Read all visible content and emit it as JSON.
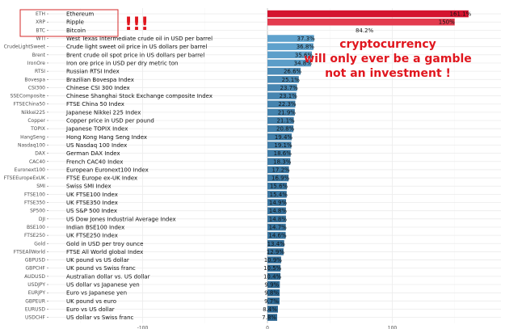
{
  "chart_data": {
    "type": "bar",
    "orientation": "horizontal",
    "xlim": [
      -100,
      160
    ],
    "x_ticks": [
      -100,
      0,
      100
    ],
    "grid": true,
    "colors": {
      "crypto": "#d4132f",
      "crypto_mid": "#e33b4e",
      "high": "#5fa2cd",
      "low": "#2c6691"
    },
    "rows": [
      {
        "code": "ETH",
        "name": "Ethereum",
        "value": 161.1,
        "label": "161.1%"
      },
      {
        "code": "XRP",
        "name": "Ripple",
        "value": 150.0,
        "label": "150%"
      },
      {
        "code": "BTC",
        "name": "Bitcoin",
        "value": 84.2,
        "label": "84.2%"
      },
      {
        "code": "WTI",
        "name": "West Texas Intermediate crude oil in USD per barrel",
        "value": 37.3,
        "label": "37.3%"
      },
      {
        "code": "CrudeLightSweet",
        "name": "Crude light sweet oil price in US dollars per barrel",
        "value": 36.8,
        "label": "36.8%"
      },
      {
        "code": "Brent",
        "name": "Brent crude oil spot price in US dollars per barrel",
        "value": 35.6,
        "label": "35.6%"
      },
      {
        "code": "IronOre",
        "name": "Iron ore price in USD per dry metric ton",
        "value": 34.8,
        "label": "34.8%"
      },
      {
        "code": "RTSI",
        "name": "Russian RTSI Index",
        "value": 26.6,
        "label": "26.6%"
      },
      {
        "code": "Bovespa",
        "name": "Brazilian Bovespa Index",
        "value": 25.1,
        "label": "25.1%"
      },
      {
        "code": "CSI300",
        "name": "Chinese CSI 300 Index",
        "value": 23.7,
        "label": "23.7%"
      },
      {
        "code": "SSEComposite",
        "name": "Chinese Shanghai Stock Exchange composite Index",
        "value": 23.1,
        "label": "23.1%"
      },
      {
        "code": "FTSEChina50",
        "name": "FTSE China 50 Index",
        "value": 22.3,
        "label": "22.3%"
      },
      {
        "code": "Nikkei225",
        "name": "Japanese Nikkei 225 Index",
        "value": 21.9,
        "label": "21.9%"
      },
      {
        "code": "Copper",
        "name": "Copper price in USD per pound",
        "value": 21.1,
        "label": "21.1%"
      },
      {
        "code": "TOPIX",
        "name": "Japanese TOPIX Index",
        "value": 20.8,
        "label": "20.8%"
      },
      {
        "code": "HangSeng",
        "name": "Hong Kong Hang Seng Index",
        "value": 19.4,
        "label": "19.4%"
      },
      {
        "code": "Nasdaq100",
        "name": "US Nasdaq 100 Index",
        "value": 19.1,
        "label": "19.1%"
      },
      {
        "code": "DAX",
        "name": "German DAX Index",
        "value": 18.6,
        "label": "18.6%"
      },
      {
        "code": "CAC40",
        "name": "French CAC40 Index",
        "value": 18.3,
        "label": "18.3%"
      },
      {
        "code": "Euronext100",
        "name": "European Euronext100 Index",
        "value": 17.2,
        "label": "17.2%"
      },
      {
        "code": "FTSEEuropeExUK",
        "name": "FTSE Europe ex-UK Index",
        "value": 16.9,
        "label": "16.9%"
      },
      {
        "code": "SMI",
        "name": "Swiss SMI Index",
        "value": 15.6,
        "label": "15.6%"
      },
      {
        "code": "FTSE100",
        "name": "UK FTSE100 Index",
        "value": 15.4,
        "label": "15.4%"
      },
      {
        "code": "FTSE350",
        "name": "UK FTSE350 Index",
        "value": 14.9,
        "label": "14.9%"
      },
      {
        "code": "SP500",
        "name": "US S&P 500 Index",
        "value": 14.8,
        "label": "14.8%"
      },
      {
        "code": "DJI",
        "name": "US Dow Jones Industrial Average Index",
        "value": 14.8,
        "label": "14.8%"
      },
      {
        "code": "BSE100",
        "name": "Indian BSE100 Index",
        "value": 14.7,
        "label": "14.7%"
      },
      {
        "code": "FTSE250",
        "name": "UK FTSE250 Index",
        "value": 14.6,
        "label": "14.6%"
      },
      {
        "code": "Gold",
        "name": "Gold in USD per troy ounce",
        "value": 13.4,
        "label": "13.4%"
      },
      {
        "code": "FTSEAllWorld",
        "name": "FTSE All World global Index",
        "value": 12.9,
        "label": "12.9%"
      },
      {
        "code": "GBPUSD",
        "name": "UK pound vs US dollar",
        "value": 10.9,
        "label": "10.9%"
      },
      {
        "code": "GBPCHF",
        "name": "UK pound vs Swiss franc",
        "value": 10.5,
        "label": "10.5%"
      },
      {
        "code": "AUDUSD",
        "name": "Australian dollar vs. US dollar",
        "value": 10.4,
        "label": "10.4%"
      },
      {
        "code": "USDJPY",
        "name": "US dollar vs Japanese yen",
        "value": 9.9,
        "label": "9.9%"
      },
      {
        "code": "EURJPY",
        "name": "Euro vs Japanese yen",
        "value": 9.8,
        "label": "9.8%"
      },
      {
        "code": "GBPEUR",
        "name": "UK pound vs euro",
        "value": 9.7,
        "label": "9.7%"
      },
      {
        "code": "EURUSD",
        "name": "Euro vs US dollar",
        "value": 8.4,
        "label": "8.4%"
      },
      {
        "code": "USDCHF",
        "name": "US dollar vs Swiss franc",
        "value": 7.8,
        "label": "7.8%"
      }
    ]
  },
  "annotations": {
    "exclaim": "!!!",
    "lines": [
      "cryptocurrency",
      "will only ever be a gamble",
      "not an investment !"
    ],
    "color": "#e0161e"
  }
}
